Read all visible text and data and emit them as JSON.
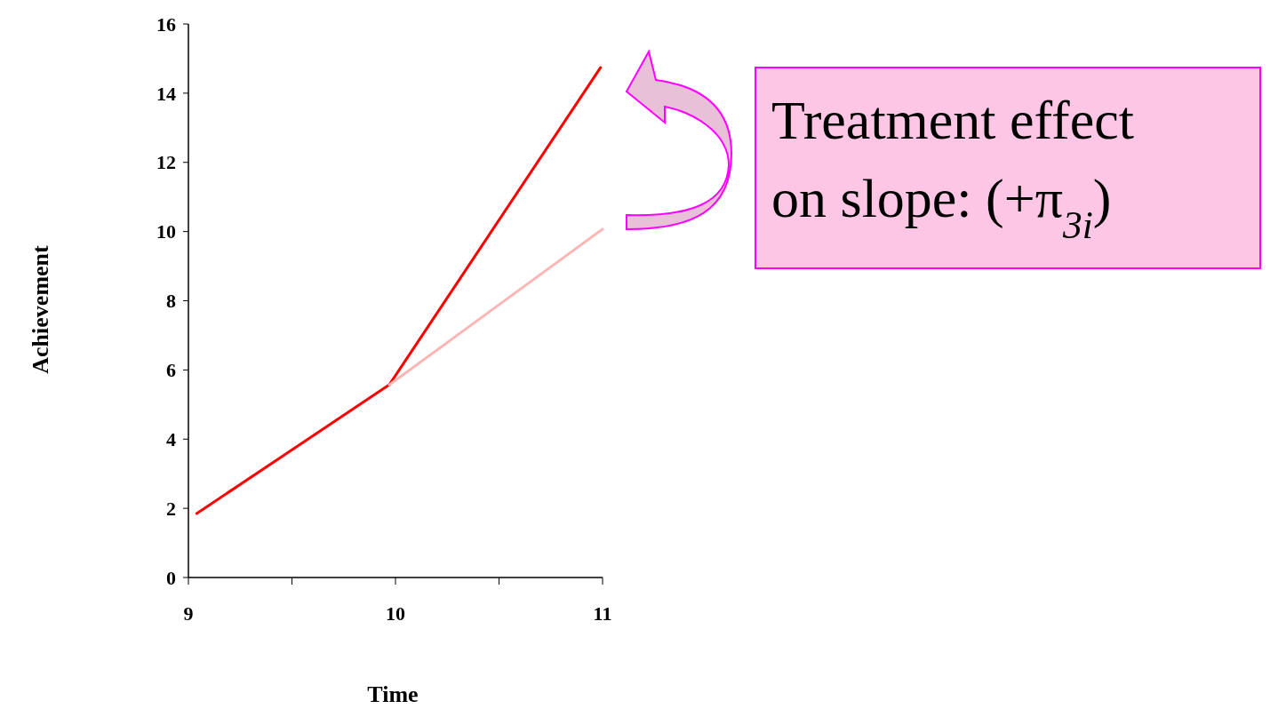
{
  "chart_data": {
    "type": "line",
    "xlabel": "Time",
    "ylabel": "Achievement",
    "xlim": [
      9,
      11
    ],
    "ylim": [
      0,
      16
    ],
    "xticks": [
      9,
      {
        "value": 9.5,
        "label": null
      },
      10,
      {
        "value": 10.5,
        "label": null
      },
      11
    ],
    "yticks": [
      0,
      2,
      4,
      6,
      8,
      10,
      12,
      14,
      16
    ],
    "series": [
      {
        "color": "#ff0000",
        "x": [
          9.04,
          9.97,
          10.99
        ],
        "values": [
          1.85,
          5.57,
          14.74
        ]
      },
      {
        "color": "#ffb4b4",
        "x": [
          9.97,
          11
        ],
        "values": [
          5.57,
          10.07
        ]
      }
    ],
    "marker": "none",
    "line_style": "solid",
    "grid": false,
    "annotations": [
      "Treatment effect on slope: (+π$_{3i}$)"
    ]
  }
}
